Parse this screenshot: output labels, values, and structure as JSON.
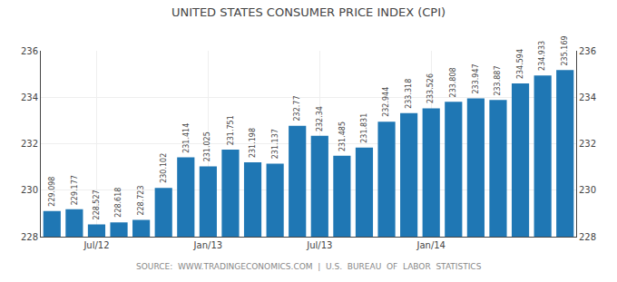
{
  "chart_data": {
    "type": "bar",
    "title": "UNITED STATES CONSUMER PRICE INDEX (CPI)",
    "annotations": [
      "SOURCE:  WWW.TRADINGECONOMICS.COM  |  U.S.  BUREAU  OF  LABOR  STATISTICS"
    ],
    "categories": [
      null,
      null,
      "Jul/12",
      null,
      null,
      null,
      null,
      "Jan/13",
      null,
      null,
      null,
      null,
      "Jul/13",
      null,
      null,
      null,
      null,
      "Jan/14",
      null,
      null,
      null,
      null,
      null,
      null
    ],
    "values": [
      229.098,
      229.177,
      228.527,
      228.618,
      228.723,
      230.102,
      231.414,
      231.025,
      231.751,
      231.198,
      231.137,
      232.77,
      232.34,
      231.485,
      231.831,
      232.944,
      233.318,
      233.526,
      233.808,
      233.947,
      233.887,
      234.594,
      234.933,
      235.169
    ],
    "ylim": [
      228,
      236
    ],
    "yticks": [
      228,
      230,
      232,
      234,
      236
    ],
    "y2lim": [
      228,
      236
    ],
    "y2ticks": [
      228,
      230,
      232,
      234,
      236
    ],
    "grid": true,
    "data_labels": true
  }
}
